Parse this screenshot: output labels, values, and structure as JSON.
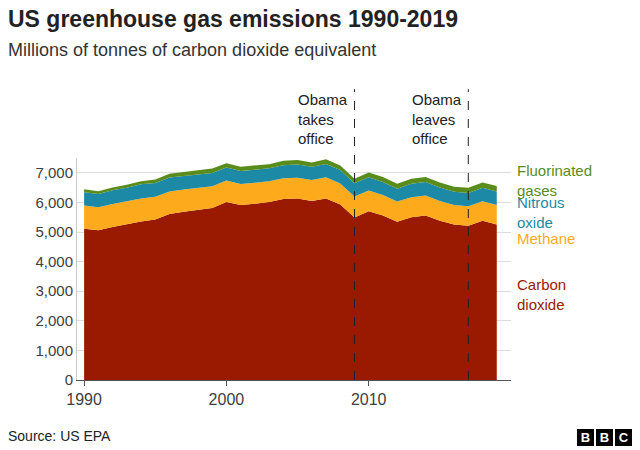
{
  "chart_data": {
    "type": "area",
    "stacked": true,
    "title": "US greenhouse gas emissions 1990-2019",
    "subtitle": "Millions of tonnes of carbon dioxide equivalent",
    "x": [
      1990,
      1991,
      1992,
      1993,
      1994,
      1995,
      1996,
      1997,
      1998,
      1999,
      2000,
      2001,
      2002,
      2003,
      2004,
      2005,
      2006,
      2007,
      2008,
      2009,
      2010,
      2011,
      2012,
      2013,
      2014,
      2015,
      2016,
      2017,
      2018,
      2019
    ],
    "series": [
      {
        "name": "Carbon dioxide",
        "color": "#991a00",
        "values": [
          5113,
          5057,
          5167,
          5268,
          5358,
          5422,
          5611,
          5680,
          5735,
          5812,
          6016,
          5910,
          5955,
          6013,
          6114,
          6132,
          6051,
          6131,
          5926,
          5494,
          5701,
          5560,
          5349,
          5502,
          5555,
          5376,
          5252,
          5212,
          5376,
          5255
        ]
      },
      {
        "name": "Methane",
        "color": "#fdaa1d",
        "values": [
          780,
          780,
          782,
          770,
          775,
          770,
          760,
          755,
          745,
          730,
          720,
          710,
          705,
          705,
          700,
          700,
          705,
          715,
          715,
          705,
          700,
          690,
          680,
          675,
          675,
          670,
          660,
          660,
          665,
          660
        ]
      },
      {
        "name": "Nitrous oxide",
        "color": "#1c8aa6",
        "values": [
          452,
          450,
          460,
          455,
          480,
          465,
          470,
          465,
          460,
          455,
          440,
          445,
          440,
          435,
          445,
          450,
          445,
          455,
          450,
          445,
          445,
          440,
          430,
          450,
          455,
          455,
          445,
          445,
          450,
          455
        ]
      },
      {
        "name": "Fluorinated gases",
        "color": "#5a8c1c",
        "values": [
          100,
          92,
          95,
          100,
          105,
          115,
          125,
          135,
          145,
          145,
          145,
          140,
          140,
          140,
          145,
          150,
          150,
          155,
          155,
          155,
          165,
          170,
          170,
          170,
          175,
          175,
          175,
          175,
          180,
          180
        ]
      }
    ],
    "xlim": [
      1989.5,
      2020
    ],
    "xticks": [
      1990,
      2000,
      2010
    ],
    "ylim": [
      0,
      7500
    ],
    "yticks": [
      0,
      {
        "value": 1000,
        "label": "1,000"
      },
      {
        "value": 2000,
        "label": "2,000"
      },
      {
        "value": 3000,
        "label": "3,000"
      },
      {
        "value": 4000,
        "label": "4,000"
      },
      {
        "value": 5000,
        "label": "5,000"
      },
      {
        "value": 6000,
        "label": "6,000"
      },
      {
        "value": 7000,
        "label": "7,000"
      }
    ],
    "grid": true,
    "annotations": [
      {
        "x": 2009,
        "text": "Obama takes office"
      },
      {
        "x": 2017,
        "text": "Obama leaves office"
      }
    ],
    "source": "Source: US EPA",
    "logo": "BBC"
  }
}
